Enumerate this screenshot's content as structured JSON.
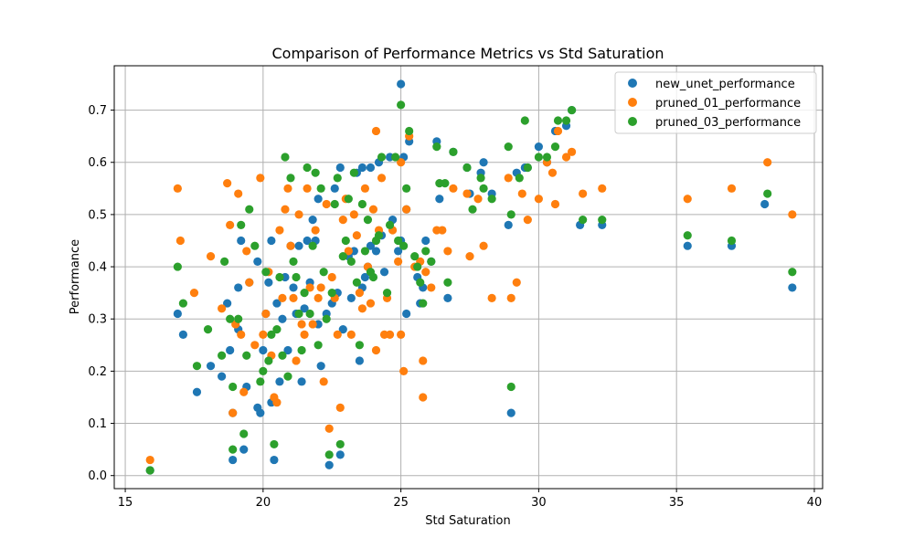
{
  "chart_data": {
    "type": "scatter",
    "title": "Comparison of Performance Metrics vs Std Saturation",
    "xlabel": "Std Saturation",
    "ylabel": "Performance",
    "xlim": [
      14.6,
      40.3
    ],
    "ylim": [
      -0.025,
      0.785
    ],
    "xticks": [
      15,
      20,
      25,
      30,
      35,
      40
    ],
    "yticks": [
      0.0,
      0.1,
      0.2,
      0.3,
      0.4,
      0.5,
      0.6,
      0.7
    ],
    "grid": true,
    "legend_position": "top-right",
    "series": [
      {
        "name": "new_unet_performance",
        "color": "#1f77b4",
        "points": [
          [
            15.9,
            0.01
          ],
          [
            16.9,
            0.31
          ],
          [
            17.1,
            0.27
          ],
          [
            17.6,
            0.16
          ],
          [
            18.1,
            0.21
          ],
          [
            18.5,
            0.19
          ],
          [
            18.7,
            0.33
          ],
          [
            18.8,
            0.24
          ],
          [
            18.9,
            0.03
          ],
          [
            18.9,
            0.12
          ],
          [
            19.1,
            0.28
          ],
          [
            19.1,
            0.36
          ],
          [
            19.2,
            0.45
          ],
          [
            19.3,
            0.05
          ],
          [
            19.4,
            0.17
          ],
          [
            19.5,
            0.37
          ],
          [
            19.8,
            0.13
          ],
          [
            19.8,
            0.41
          ],
          [
            19.9,
            0.12
          ],
          [
            20.0,
            0.24
          ],
          [
            20.1,
            0.31
          ],
          [
            20.2,
            0.37
          ],
          [
            20.3,
            0.14
          ],
          [
            20.3,
            0.45
          ],
          [
            20.4,
            0.03
          ],
          [
            20.5,
            0.33
          ],
          [
            20.6,
            0.18
          ],
          [
            20.7,
            0.3
          ],
          [
            20.8,
            0.38
          ],
          [
            20.9,
            0.24
          ],
          [
            21.0,
            0.44
          ],
          [
            21.1,
            0.36
          ],
          [
            21.2,
            0.31
          ],
          [
            21.3,
            0.44
          ],
          [
            21.4,
            0.18
          ],
          [
            21.5,
            0.32
          ],
          [
            21.6,
            0.45
          ],
          [
            21.7,
            0.37
          ],
          [
            21.8,
            0.49
          ],
          [
            21.9,
            0.45
          ],
          [
            22.0,
            0.29
          ],
          [
            22.0,
            0.53
          ],
          [
            22.1,
            0.21
          ],
          [
            22.3,
            0.31
          ],
          [
            22.4,
            0.02
          ],
          [
            22.5,
            0.33
          ],
          [
            22.6,
            0.55
          ],
          [
            22.7,
            0.35
          ],
          [
            22.8,
            0.04
          ],
          [
            22.8,
            0.59
          ],
          [
            22.9,
            0.28
          ],
          [
            23.1,
            0.42
          ],
          [
            23.2,
            0.34
          ],
          [
            23.3,
            0.43
          ],
          [
            23.4,
            0.58
          ],
          [
            23.5,
            0.22
          ],
          [
            23.6,
            0.36
          ],
          [
            23.6,
            0.59
          ],
          [
            23.7,
            0.38
          ],
          [
            23.8,
            0.4
          ],
          [
            23.9,
            0.44
          ],
          [
            23.9,
            0.59
          ],
          [
            24.1,
            0.43
          ],
          [
            24.2,
            0.6
          ],
          [
            24.3,
            0.46
          ],
          [
            24.4,
            0.39
          ],
          [
            24.6,
            0.61
          ],
          [
            24.7,
            0.49
          ],
          [
            24.9,
            0.43
          ],
          [
            25.0,
            0.75
          ],
          [
            25.0,
            0.45
          ],
          [
            25.1,
            0.61
          ],
          [
            25.2,
            0.31
          ],
          [
            25.2,
            0.51
          ],
          [
            25.3,
            0.64
          ],
          [
            25.6,
            0.38
          ],
          [
            25.7,
            0.33
          ],
          [
            25.8,
            0.36
          ],
          [
            25.9,
            0.45
          ],
          [
            26.1,
            0.41
          ],
          [
            26.3,
            0.64
          ],
          [
            26.4,
            0.53
          ],
          [
            26.7,
            0.34
          ],
          [
            26.9,
            0.62
          ],
          [
            27.4,
            0.59
          ],
          [
            27.5,
            0.54
          ],
          [
            27.9,
            0.58
          ],
          [
            28.0,
            0.6
          ],
          [
            28.3,
            0.54
          ],
          [
            28.9,
            0.48
          ],
          [
            29.0,
            0.12
          ],
          [
            29.2,
            0.58
          ],
          [
            29.5,
            0.59
          ],
          [
            29.6,
            0.59
          ],
          [
            30.0,
            0.63
          ],
          [
            30.3,
            0.6
          ],
          [
            30.6,
            0.66
          ],
          [
            31.0,
            0.67
          ],
          [
            31.2,
            0.7
          ],
          [
            31.5,
            0.48
          ],
          [
            32.3,
            0.48
          ],
          [
            35.4,
            0.44
          ],
          [
            37.0,
            0.44
          ],
          [
            38.2,
            0.52
          ],
          [
            39.2,
            0.36
          ]
        ]
      },
      {
        "name": "pruned_01_performance",
        "color": "#ff7f0e",
        "points": [
          [
            15.9,
            0.03
          ],
          [
            16.9,
            0.55
          ],
          [
            17.0,
            0.45
          ],
          [
            17.5,
            0.35
          ],
          [
            18.1,
            0.42
          ],
          [
            18.5,
            0.32
          ],
          [
            18.7,
            0.56
          ],
          [
            18.8,
            0.48
          ],
          [
            18.9,
            0.12
          ],
          [
            19.0,
            0.29
          ],
          [
            19.1,
            0.54
          ],
          [
            19.2,
            0.27
          ],
          [
            19.3,
            0.16
          ],
          [
            19.4,
            0.43
          ],
          [
            19.5,
            0.37
          ],
          [
            19.7,
            0.25
          ],
          [
            19.9,
            0.57
          ],
          [
            20.0,
            0.27
          ],
          [
            20.1,
            0.31
          ],
          [
            20.2,
            0.39
          ],
          [
            20.3,
            0.23
          ],
          [
            20.4,
            0.15
          ],
          [
            20.5,
            0.14
          ],
          [
            20.6,
            0.47
          ],
          [
            20.7,
            0.34
          ],
          [
            20.8,
            0.51
          ],
          [
            20.9,
            0.55
          ],
          [
            21.0,
            0.44
          ],
          [
            21.1,
            0.34
          ],
          [
            21.2,
            0.22
          ],
          [
            21.3,
            0.5
          ],
          [
            21.4,
            0.29
          ],
          [
            21.5,
            0.27
          ],
          [
            21.6,
            0.55
          ],
          [
            21.7,
            0.36
          ],
          [
            21.8,
            0.29
          ],
          [
            21.9,
            0.47
          ],
          [
            22.0,
            0.34
          ],
          [
            22.1,
            0.36
          ],
          [
            22.2,
            0.18
          ],
          [
            22.3,
            0.52
          ],
          [
            22.4,
            0.09
          ],
          [
            22.5,
            0.38
          ],
          [
            22.6,
            0.34
          ],
          [
            22.7,
            0.27
          ],
          [
            22.8,
            0.13
          ],
          [
            22.9,
            0.49
          ],
          [
            23.0,
            0.53
          ],
          [
            23.1,
            0.43
          ],
          [
            23.2,
            0.27
          ],
          [
            23.3,
            0.5
          ],
          [
            23.4,
            0.46
          ],
          [
            23.5,
            0.35
          ],
          [
            23.6,
            0.32
          ],
          [
            23.7,
            0.55
          ],
          [
            23.8,
            0.4
          ],
          [
            23.9,
            0.33
          ],
          [
            24.0,
            0.51
          ],
          [
            24.1,
            0.24
          ],
          [
            24.1,
            0.66
          ],
          [
            24.2,
            0.47
          ],
          [
            24.3,
            0.57
          ],
          [
            24.4,
            0.27
          ],
          [
            24.5,
            0.34
          ],
          [
            24.6,
            0.27
          ],
          [
            24.7,
            0.47
          ],
          [
            24.9,
            0.41
          ],
          [
            25.0,
            0.27
          ],
          [
            25.0,
            0.6
          ],
          [
            25.1,
            0.2
          ],
          [
            25.2,
            0.51
          ],
          [
            25.3,
            0.65
          ],
          [
            25.5,
            0.4
          ],
          [
            25.7,
            0.41
          ],
          [
            25.8,
            0.15
          ],
          [
            25.8,
            0.22
          ],
          [
            25.9,
            0.39
          ],
          [
            26.1,
            0.36
          ],
          [
            26.3,
            0.47
          ],
          [
            26.5,
            0.47
          ],
          [
            26.7,
            0.43
          ],
          [
            26.9,
            0.55
          ],
          [
            27.4,
            0.54
          ],
          [
            27.5,
            0.42
          ],
          [
            27.8,
            0.53
          ],
          [
            28.0,
            0.44
          ],
          [
            28.3,
            0.34
          ],
          [
            28.9,
            0.57
          ],
          [
            29.0,
            0.34
          ],
          [
            29.2,
            0.37
          ],
          [
            29.4,
            0.54
          ],
          [
            29.6,
            0.49
          ],
          [
            30.0,
            0.53
          ],
          [
            30.3,
            0.6
          ],
          [
            30.5,
            0.58
          ],
          [
            30.6,
            0.52
          ],
          [
            30.7,
            0.66
          ],
          [
            31.0,
            0.61
          ],
          [
            31.2,
            0.62
          ],
          [
            31.6,
            0.54
          ],
          [
            32.3,
            0.55
          ],
          [
            35.4,
            0.53
          ],
          [
            37.0,
            0.55
          ],
          [
            38.3,
            0.6
          ],
          [
            39.2,
            0.5
          ]
        ]
      },
      {
        "name": "pruned_03_performance",
        "color": "#2ca02c",
        "points": [
          [
            15.9,
            0.01
          ],
          [
            16.9,
            0.4
          ],
          [
            17.1,
            0.33
          ],
          [
            17.6,
            0.21
          ],
          [
            18.0,
            0.28
          ],
          [
            18.5,
            0.23
          ],
          [
            18.6,
            0.41
          ],
          [
            18.8,
            0.3
          ],
          [
            18.9,
            0.05
          ],
          [
            18.9,
            0.17
          ],
          [
            19.1,
            0.3
          ],
          [
            19.2,
            0.48
          ],
          [
            19.3,
            0.08
          ],
          [
            19.4,
            0.23
          ],
          [
            19.5,
            0.51
          ],
          [
            19.7,
            0.44
          ],
          [
            19.9,
            0.18
          ],
          [
            20.0,
            0.2
          ],
          [
            20.1,
            0.39
          ],
          [
            20.2,
            0.22
          ],
          [
            20.3,
            0.27
          ],
          [
            20.4,
            0.06
          ],
          [
            20.5,
            0.28
          ],
          [
            20.6,
            0.38
          ],
          [
            20.7,
            0.23
          ],
          [
            20.8,
            0.61
          ],
          [
            20.9,
            0.19
          ],
          [
            21.0,
            0.57
          ],
          [
            21.1,
            0.41
          ],
          [
            21.2,
            0.38
          ],
          [
            21.3,
            0.31
          ],
          [
            21.4,
            0.24
          ],
          [
            21.5,
            0.35
          ],
          [
            21.6,
            0.59
          ],
          [
            21.7,
            0.31
          ],
          [
            21.8,
            0.44
          ],
          [
            21.9,
            0.58
          ],
          [
            22.0,
            0.25
          ],
          [
            22.1,
            0.55
          ],
          [
            22.2,
            0.39
          ],
          [
            22.3,
            0.3
          ],
          [
            22.4,
            0.04
          ],
          [
            22.5,
            0.35
          ],
          [
            22.6,
            0.52
          ],
          [
            22.7,
            0.57
          ],
          [
            22.8,
            0.06
          ],
          [
            22.9,
            0.42
          ],
          [
            23.0,
            0.45
          ],
          [
            23.1,
            0.53
          ],
          [
            23.2,
            0.41
          ],
          [
            23.3,
            0.58
          ],
          [
            23.4,
            0.37
          ],
          [
            23.5,
            0.25
          ],
          [
            23.6,
            0.52
          ],
          [
            23.7,
            0.43
          ],
          [
            23.8,
            0.49
          ],
          [
            23.9,
            0.39
          ],
          [
            24.0,
            0.38
          ],
          [
            24.1,
            0.45
          ],
          [
            24.2,
            0.46
          ],
          [
            24.3,
            0.61
          ],
          [
            24.5,
            0.35
          ],
          [
            24.6,
            0.48
          ],
          [
            24.8,
            0.61
          ],
          [
            24.9,
            0.45
          ],
          [
            25.0,
            0.71
          ],
          [
            25.1,
            0.44
          ],
          [
            25.2,
            0.55
          ],
          [
            25.3,
            0.66
          ],
          [
            25.5,
            0.42
          ],
          [
            25.6,
            0.4
          ],
          [
            25.7,
            0.37
          ],
          [
            25.8,
            0.33
          ],
          [
            25.9,
            0.43
          ],
          [
            26.1,
            0.41
          ],
          [
            26.3,
            0.63
          ],
          [
            26.4,
            0.56
          ],
          [
            26.6,
            0.56
          ],
          [
            26.7,
            0.37
          ],
          [
            26.9,
            0.62
          ],
          [
            27.4,
            0.59
          ],
          [
            27.6,
            0.51
          ],
          [
            27.9,
            0.57
          ],
          [
            28.0,
            0.55
          ],
          [
            28.3,
            0.53
          ],
          [
            28.9,
            0.63
          ],
          [
            29.0,
            0.17
          ],
          [
            29.0,
            0.5
          ],
          [
            29.3,
            0.57
          ],
          [
            29.5,
            0.68
          ],
          [
            29.6,
            0.59
          ],
          [
            30.0,
            0.61
          ],
          [
            30.3,
            0.61
          ],
          [
            30.6,
            0.63
          ],
          [
            30.7,
            0.68
          ],
          [
            31.0,
            0.68
          ],
          [
            31.2,
            0.7
          ],
          [
            31.6,
            0.49
          ],
          [
            32.3,
            0.49
          ],
          [
            35.4,
            0.46
          ],
          [
            37.0,
            0.45
          ],
          [
            38.3,
            0.54
          ],
          [
            39.2,
            0.39
          ]
        ]
      }
    ]
  }
}
